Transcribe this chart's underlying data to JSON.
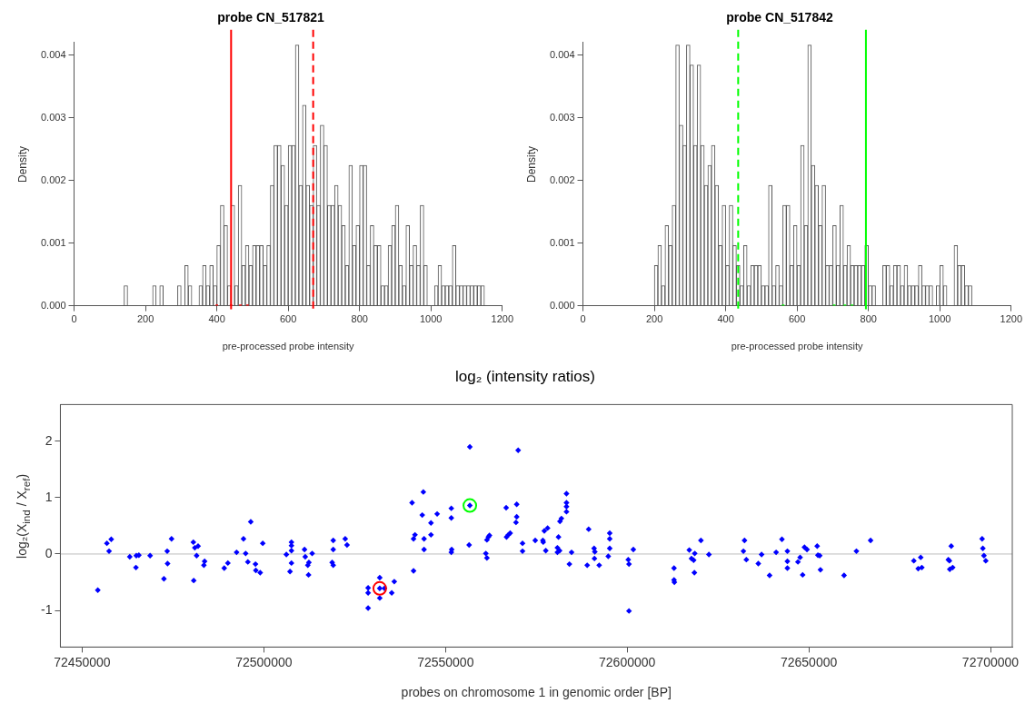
{
  "chart_data": [
    {
      "type": "histogram",
      "title": "probe CN_517821",
      "xlabel": "pre-processed probe intensity",
      "ylabel": "Density",
      "bins": [
        140,
        150,
        160,
        170,
        180,
        190,
        200,
        210,
        220,
        230,
        240,
        250,
        260,
        270,
        280,
        290,
        300,
        310,
        320,
        330,
        340,
        350,
        360,
        370,
        380,
        390,
        400,
        410,
        420,
        430,
        440,
        450,
        460,
        470,
        480,
        490,
        500,
        510,
        520,
        530,
        540,
        550,
        560,
        570,
        580,
        590,
        600,
        610,
        620,
        630,
        640,
        650,
        660,
        670,
        680,
        690,
        700,
        710,
        720,
        730,
        740,
        750,
        760,
        770,
        780,
        790,
        800,
        810,
        820,
        830,
        840,
        850,
        860,
        870,
        880,
        890,
        900,
        910,
        920,
        930,
        940,
        950,
        960,
        970,
        980,
        990,
        1000,
        1010,
        1020,
        1030,
        1040,
        1050,
        1060,
        1070,
        1080,
        1090,
        1100,
        1110,
        1120,
        1130,
        1140,
        1150
      ],
      "values": [
        0.00032,
        0,
        0,
        0,
        0,
        0,
        0,
        0,
        0.00032,
        0,
        0.00032,
        0,
        0,
        0,
        0,
        0.00032,
        0,
        0.00064,
        0.00032,
        0,
        0,
        0.00032,
        0.00064,
        0.00032,
        0.00064,
        0.00032,
        0.00096,
        0.0016,
        0.00128,
        0.00032,
        0.0016,
        0.00032,
        0.00192,
        0.00064,
        0.00096,
        0.00064,
        0.00096,
        0.00096,
        0.00096,
        0.00064,
        0.00096,
        0.00192,
        0.00256,
        0.00256,
        0.00224,
        0.0016,
        0.00256,
        0.00256,
        0.00416,
        0.00192,
        0.0032,
        0.00192,
        0.0016,
        0.00256,
        0.0016,
        0.00288,
        0.00256,
        0.0016,
        0.0016,
        0.00192,
        0.0016,
        0.00128,
        0.00064,
        0.00224,
        0.00096,
        0.00128,
        0.00224,
        0.00224,
        0.00064,
        0.00128,
        0.00096,
        0.00096,
        0.00032,
        0.00032,
        0.00096,
        0.00128,
        0.0016,
        0.00064,
        0.00032,
        0.00128,
        0.00064,
        0.00096,
        0.00064,
        0.0016,
        0.00064,
        0,
        0,
        0.00032,
        0.00064,
        0.00032,
        0.00032,
        0.00032,
        0.00096,
        0.00032,
        0.00032,
        0.00032,
        0.00032,
        0.00032,
        0.00032,
        0.00032,
        0.00032
      ],
      "series": [
        {
          "type": "scatter",
          "marker": "square",
          "color": "#ff0000",
          "x": [
            400,
            440,
            466,
            486
          ],
          "values": [
            0,
            0,
            0,
            0
          ]
        }
      ],
      "xlim": [
        0,
        1200
      ],
      "xticks": [
        0,
        200,
        400,
        600,
        800,
        1000,
        1200
      ],
      "ylim": [
        0,
        0.0042
      ],
      "yticks": [
        {
          "value": 0,
          "label": "0.000"
        },
        {
          "value": 0.001,
          "label": "0.001"
        },
        {
          "value": 0.002,
          "label": "0.002"
        },
        {
          "value": 0.003,
          "label": "0.003"
        },
        {
          "value": 0.004,
          "label": "0.004"
        }
      ],
      "ref_lines": [
        {
          "axis": "x",
          "value": 440,
          "color": "#ff0000",
          "line_style": "solid"
        },
        {
          "axis": "x",
          "value": 670,
          "color": "#ff0000",
          "line_style": "dashed"
        }
      ]
    },
    {
      "type": "histogram",
      "title": "probe CN_517842",
      "xlabel": "pre-processed probe intensity",
      "ylabel": "Density",
      "bins": [
        200,
        210,
        220,
        230,
        240,
        250,
        260,
        270,
        280,
        290,
        300,
        310,
        320,
        330,
        340,
        350,
        360,
        370,
        380,
        390,
        400,
        410,
        420,
        430,
        440,
        450,
        460,
        470,
        480,
        490,
        500,
        510,
        520,
        530,
        540,
        550,
        560,
        570,
        580,
        590,
        600,
        610,
        620,
        630,
        640,
        650,
        660,
        670,
        680,
        690,
        700,
        710,
        720,
        730,
        740,
        750,
        760,
        770,
        780,
        790,
        800,
        810,
        820,
        830,
        840,
        850,
        860,
        870,
        880,
        890,
        900,
        910,
        920,
        930,
        940,
        950,
        960,
        970,
        980,
        990,
        1000,
        1010,
        1020,
        1030,
        1040,
        1050,
        1060,
        1070,
        1080,
        1090
      ],
      "values": [
        0.00064,
        0.00096,
        0.00032,
        0.00128,
        0.00096,
        0.0016,
        0.00416,
        0.00288,
        0.00256,
        0.00416,
        0.00384,
        0.00256,
        0.00384,
        0.00256,
        0.00192,
        0.00224,
        0.00256,
        0.00192,
        0.00096,
        0.0016,
        0.00064,
        0.0016,
        0.00096,
        0.00064,
        0.00032,
        0.00096,
        0.00032,
        0.00064,
        0.00064,
        0.00064,
        0.00032,
        0.00032,
        0.00192,
        0.00032,
        0.00064,
        0.00032,
        0.0016,
        0.0016,
        0.00064,
        0.00128,
        0.00064,
        0.00256,
        0.00128,
        0.00416,
        0.00224,
        0.00192,
        0.00128,
        0.00192,
        0.00064,
        0.00064,
        0.00128,
        0.00064,
        0.0016,
        0.00064,
        0.00096,
        0.00064,
        0.00064,
        0.00064,
        0.00064,
        0.00096,
        0.00032,
        0.00032,
        0,
        0,
        0.00064,
        0.00064,
        0.00032,
        0.00064,
        0.00064,
        0.00032,
        0.00064,
        0.00032,
        0.00032,
        0.00032,
        0.00064,
        0.00032,
        0.00032,
        0.00032,
        0,
        0.00032,
        0.00064,
        0.00032,
        0,
        0,
        0.00096,
        0.00064,
        0.00064,
        0.00032,
        0.00032
      ],
      "series": [
        {
          "type": "scatter",
          "marker": "square",
          "color": "#00ff00",
          "x": [
            561,
            704,
            734,
            754
          ],
          "values": [
            0,
            0,
            0,
            0
          ]
        }
      ],
      "xlim": [
        0,
        1200
      ],
      "xticks": [
        0,
        200,
        400,
        600,
        800,
        1000,
        1200
      ],
      "ylim": [
        0,
        0.0042
      ],
      "yticks": [
        {
          "value": 0,
          "label": "0.000"
        },
        {
          "value": 0.001,
          "label": "0.001"
        },
        {
          "value": 0.002,
          "label": "0.002"
        },
        {
          "value": 0.003,
          "label": "0.003"
        },
        {
          "value": 0.004,
          "label": "0.004"
        }
      ],
      "ref_lines": [
        {
          "axis": "x",
          "value": 435,
          "color": "#00ff00",
          "line_style": "dashed"
        },
        {
          "axis": "x",
          "value": 793,
          "color": "#00ff00",
          "line_style": "solid"
        }
      ]
    },
    {
      "type": "scatter",
      "title": "log₂ (intensity ratios)",
      "xlabel": "probes on chromosome 1 in genomic order [BP]",
      "ylabel": "log₂(X$_{ind}$ / X$_{ref}$)",
      "series": [
        {
          "marker": "diamond",
          "color": "#0000ff",
          "x": [
            72454300,
            72456800,
            72458000,
            72457400,
            72463100,
            72464800,
            72464900,
            72465600,
            72468700,
            72472500,
            72473400,
            72473500,
            72474600,
            72480600,
            72480700,
            72481000,
            72481900,
            72481500,
            72483700,
            72483500,
            72489100,
            72490100,
            72492500,
            72494400,
            72495000,
            72495600,
            72496400,
            72497700,
            72497800,
            72499000,
            72499700,
            72506200,
            72507200,
            72507600,
            72507600,
            72507600,
            72507600,
            72511200,
            72511400,
            72512100,
            72512400,
            72512300,
            72513300,
            72519100,
            72519100,
            72518800,
            72519100,
            72522400,
            72522900,
            72528700,
            72528700,
            72528700,
            72531900,
            72531900,
            72531900,
            72533200,
            72535200,
            72535900,
            72540800,
            72541200,
            72541200,
            72541600,
            72543600,
            72543900,
            72544100,
            72544100,
            72546000,
            72546000,
            72547700,
            72551600,
            72551600,
            72551600,
            72551700,
            72556700,
            72556700,
            72556500,
            72561100,
            72561400,
            72561400,
            72561800,
            72562100,
            72566700,
            72566800,
            72567300,
            72567800,
            72569600,
            72569600,
            72569400,
            72570000,
            72571200,
            72571200,
            72574700,
            72576800,
            72576900,
            72577600,
            72577200,
            72578100,
            72581100,
            72580800,
            72580800,
            72581400,
            72581500,
            72581900,
            72583300,
            72583300,
            72583300,
            72583300,
            72584100,
            72584700,
            72589000,
            72589400,
            72590900,
            72591100,
            72591000,
            72592300,
            72594800,
            72595200,
            72595200,
            72595200,
            72600300,
            72600500,
            72600500,
            72601700,
            72612900,
            72612900,
            72613000,
            72617100,
            72617700,
            72618300,
            72618600,
            72618500,
            72620300,
            72622500,
            72632300,
            72632000,
            72632800,
            72636100,
            72637000,
            72639200,
            72641000,
            72642600,
            72644100,
            72644100,
            72644100,
            72647000,
            72647600,
            72648300,
            72648800,
            72649500,
            72652300,
            72652500,
            72653000,
            72653200,
            72659700,
            72663100,
            72667000,
            72678900,
            72680100,
            72680800,
            72681100,
            72688400,
            72688700,
            72688800,
            72689600,
            72689200,
            72697700,
            72697900,
            72698200,
            72698700
          ],
          "values": [
            -0.64,
            0.19,
            0.26,
            0.05,
            -0.05,
            -0.24,
            -0.03,
            -0.02,
            -0.03,
            -0.44,
            0.05,
            -0.17,
            0.27,
            0.21,
            -0.47,
            0.11,
            0.14,
            -0.03,
            -0.13,
            -0.2,
            -0.25,
            -0.16,
            0.03,
            0.27,
            0.01,
            -0.14,
            0.57,
            -0.18,
            -0.29,
            -0.33,
            0.19,
            -0.01,
            -0.31,
            0.21,
            0.15,
            0.06,
            -0.16,
            0.08,
            -0.05,
            -0.2,
            -0.15,
            -0.37,
            0.01,
            0.24,
            0.08,
            -0.15,
            -0.2,
            0.27,
            0.16,
            -0.6,
            -0.69,
            -0.96,
            -0.42,
            -0.61,
            -0.78,
            -0.61,
            -0.69,
            -0.49,
            0.91,
            -0.3,
            0.27,
            0.34,
            0.69,
            1.1,
            0.27,
            0.08,
            0.55,
            0.34,
            0.71,
            0.81,
            0.64,
            0.03,
            0.08,
            1.9,
            0.86,
            0.16,
            0.01,
            -0.07,
            0.25,
            0.3,
            0.33,
            0.82,
            0.3,
            0.34,
            0.37,
            0.88,
            0.66,
            0.56,
            1.84,
            0.19,
            0.05,
            0.24,
            0.24,
            0.21,
            0.06,
            0.41,
            0.46,
            0.3,
            0.11,
            0.03,
            0.06,
            0.58,
            0.63,
            1.07,
            0.91,
            0.84,
            0.75,
            -0.18,
            0.03,
            -0.2,
            0.44,
            0.1,
            0.04,
            -0.08,
            -0.2,
            -0.04,
            0.37,
            0.27,
            0.1,
            -0.1,
            -0.18,
            -1.01,
            0.08,
            -0.25,
            -0.46,
            -0.5,
            0.07,
            -0.08,
            -0.11,
            0.01,
            -0.33,
            0.24,
            -0.01,
            0.24,
            0.05,
            -0.1,
            -0.17,
            -0.01,
            -0.38,
            0.03,
            0.26,
            0.05,
            -0.13,
            -0.25,
            -0.14,
            -0.06,
            -0.37,
            0.12,
            0.08,
            0.14,
            -0.02,
            -0.03,
            -0.28,
            -0.38,
            0.05,
            0.24,
            -0.12,
            -0.26,
            -0.06,
            -0.24,
            -0.1,
            -0.12,
            -0.27,
            -0.24,
            0.14,
            0.27,
            0.1,
            -0.03,
            -0.12
          ]
        },
        {
          "marker": "circle",
          "color": "#ff0000",
          "x": [
            72531900
          ],
          "values": [
            -0.61
          ]
        },
        {
          "marker": "circle",
          "color": "#00ff00",
          "x": [
            72556700
          ],
          "values": [
            0.86
          ]
        }
      ],
      "xlim": [
        72444000,
        72706000
      ],
      "xticks": [
        72450000,
        72500000,
        72550000,
        72600000,
        72650000,
        72700000
      ],
      "ylim": [
        -1.65,
        2.65
      ],
      "yticks": [
        -1,
        0,
        1,
        2
      ],
      "ref_lines": [
        {
          "axis": "y",
          "value": 0,
          "color": "#bebebe",
          "line_style": "solid"
        }
      ]
    }
  ]
}
